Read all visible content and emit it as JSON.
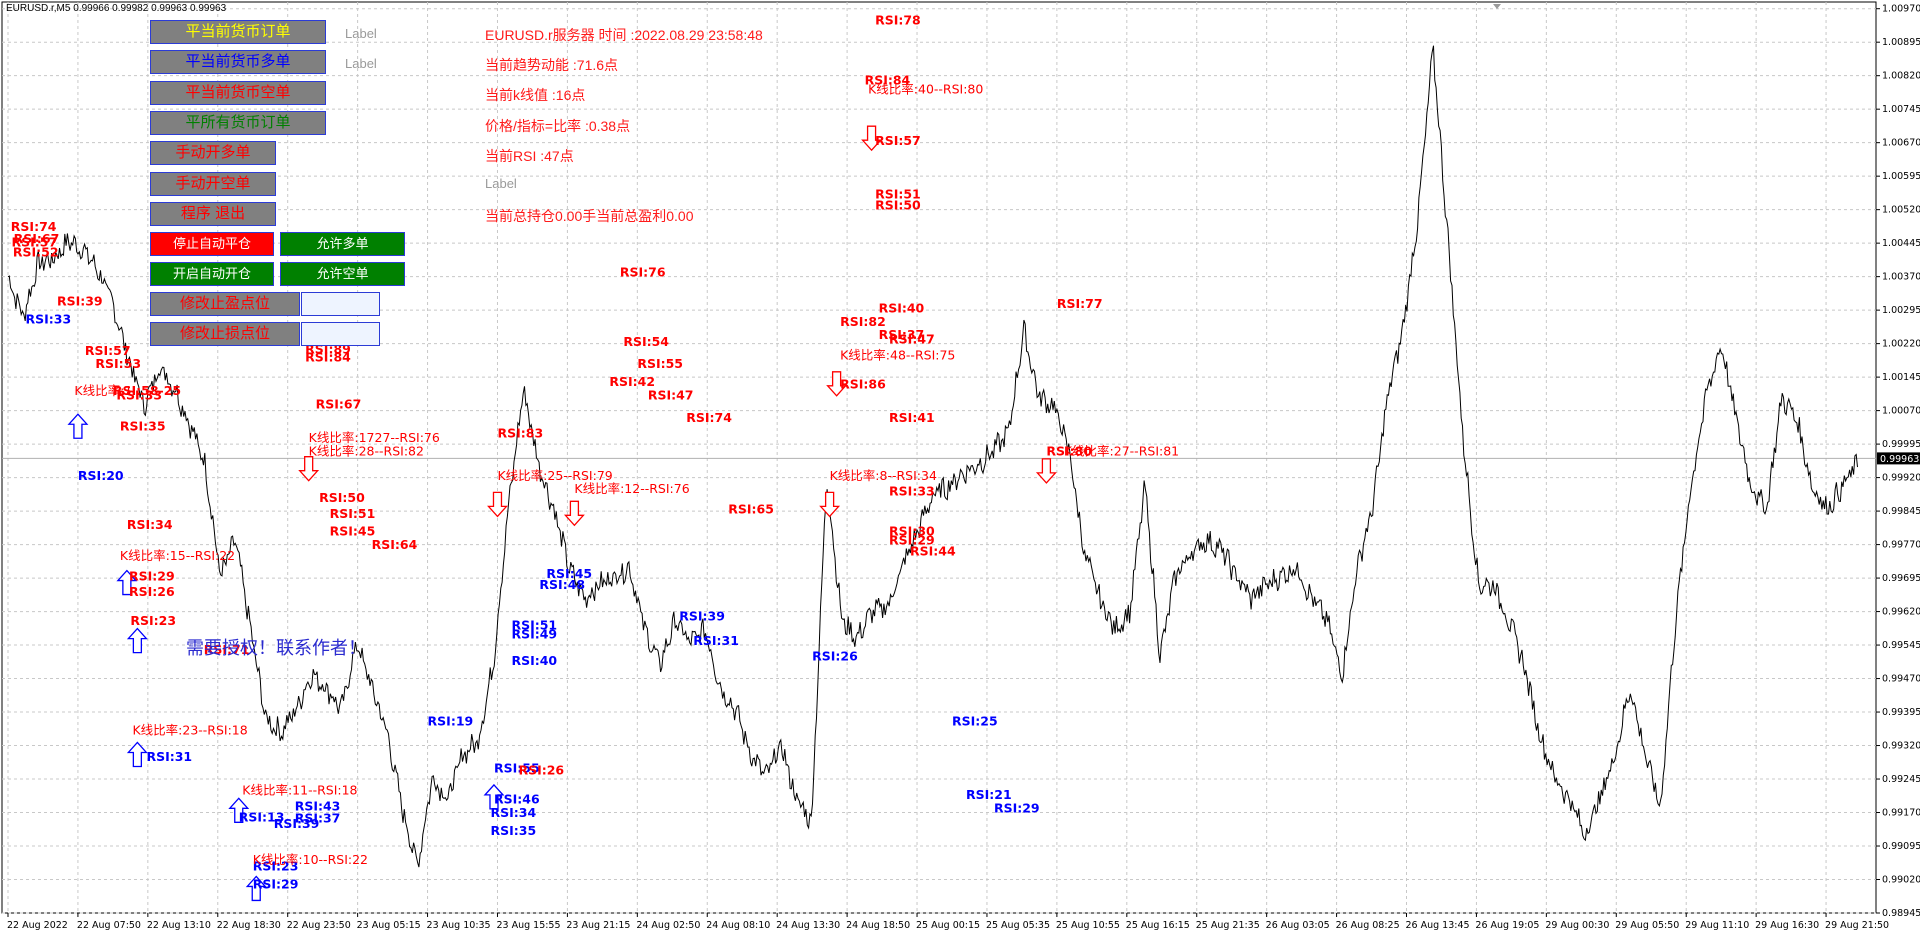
{
  "window": {
    "symbol_header": "EURUSD.r,M5  0.99966 0.99982 0.99963 0.99963"
  },
  "panel": {
    "buttons_left": [
      {
        "label": "平当前货币订单",
        "name": "close-current-orders-button",
        "bg": "#808080",
        "color": "#ffff00"
      },
      {
        "label": "平当前货币多单",
        "name": "close-current-long-button",
        "bg": "#808080",
        "color": "#0000ff"
      },
      {
        "label": "平当前货币空单",
        "name": "close-current-short-button",
        "bg": "#808080",
        "color": "#ff0000"
      },
      {
        "label": "平所有货币订单",
        "name": "close-all-orders-button",
        "bg": "#808080",
        "color": "#008000"
      },
      {
        "label": "手动开多单",
        "name": "manual-open-long-button",
        "bg": "#808080",
        "color": "#ff0000"
      },
      {
        "label": "手动开空单",
        "name": "manual-open-short-button",
        "bg": "#808080",
        "color": "#ff0000"
      },
      {
        "label": "程序 退出",
        "name": "exit-program-button",
        "bg": "#808080",
        "color": "#ff0000"
      }
    ],
    "side_labels": [
      "Label",
      "Label"
    ],
    "toggle_buttons": [
      {
        "label": "停止自动平仓",
        "name": "stop-auto-close-button",
        "bg": "#ff0000",
        "color": "#ffffff"
      },
      {
        "label": "允许多单",
        "name": "allow-long-button",
        "bg": "#008000",
        "color": "#ffffff"
      },
      {
        "label": "开启自动开仓",
        "name": "start-auto-open-button",
        "bg": "#008000",
        "color": "#ffffff"
      },
      {
        "label": "允许空单",
        "name": "allow-short-button",
        "bg": "#008000",
        "color": "#ffffff"
      }
    ],
    "edit_rows": [
      {
        "label": "修改止盈点位",
        "name": "modify-take-profit-button",
        "input_value": ""
      },
      {
        "label": "修改止损点位",
        "name": "modify-stop-loss-button",
        "input_value": ""
      }
    ],
    "info_lines": [
      "EURUSD.r服务器  时间 :2022.08.29 23:58:48",
      "当前趋势动能 :71.6点",
      "当前k线值 :16点",
      "价格/指标=比率 :0.38点",
      "当前RSI :47点",
      "Label",
      "当前总持仓0.00手当前总盈利0.00"
    ],
    "watermark": "需要授权！联系作者！"
  },
  "colors": {
    "price_line": "#000000",
    "grid": "#c8c8c8",
    "rsi_high": "#ff0000",
    "rsi_low": "#0000ff",
    "current_price_bg": "#000000"
  },
  "chart_data": {
    "type": "line",
    "symbol": "EURUSD.r",
    "timeframe": "M5",
    "ylim": [
      0.98945,
      1.00985
    ],
    "y_ticks": [
      "1.00970",
      "1.00895",
      "1.00820",
      "1.00745",
      "1.00670",
      "1.00595",
      "1.00520",
      "1.00445",
      "1.00370",
      "1.00295",
      "1.00220",
      "1.00145",
      "1.00070",
      "0.99995",
      "0.99920",
      "0.99845",
      "0.99770",
      "0.99695",
      "0.99620",
      "0.99545",
      "0.99470",
      "0.99395",
      "0.99320",
      "0.99245",
      "0.99170",
      "0.99095",
      "0.99020",
      "0.98945"
    ],
    "x_ticks": [
      "22 Aug 2022",
      "22 Aug 07:50",
      "22 Aug 13:10",
      "22 Aug 18:30",
      "22 Aug 23:50",
      "23 Aug 05:15",
      "23 Aug 10:35",
      "23 Aug 15:55",
      "23 Aug 21:15",
      "24 Aug 02:50",
      "24 Aug 08:10",
      "24 Aug 13:30",
      "24 Aug 18:50",
      "25 Aug 00:15",
      "25 Aug 05:35",
      "25 Aug 10:55",
      "25 Aug 16:15",
      "25 Aug 21:35",
      "26 Aug 03:05",
      "26 Aug 08:25",
      "26 Aug 13:45",
      "26 Aug 19:05",
      "29 Aug 00:30",
      "29 Aug 05:50",
      "29 Aug 11:10",
      "29 Aug 16:30",
      "29 Aug 21:50"
    ],
    "current_price": "0.99963",
    "series": [
      {
        "values": [
          1.0037,
          1.0028,
          1.004,
          1.0041,
          1.0045,
          1.0043,
          1.0038,
          1.003,
          1.0018,
          1.0008,
          1.0017,
          1.0012,
          1.0004,
          0.9995,
          0.997,
          0.9978,
          0.9958,
          0.9938,
          0.9935,
          0.994,
          0.9948,
          0.9945,
          0.994,
          0.9955,
          0.9945,
          0.9935,
          0.9918,
          0.9905,
          0.9925,
          0.992,
          0.993,
          0.9933,
          0.995,
          0.9985,
          1.0012,
          0.9995,
          0.9985,
          0.9972,
          0.9965,
          0.9968,
          0.997,
          0.9972,
          0.9958,
          0.995,
          0.996,
          0.9955,
          0.9958,
          0.9945,
          0.994,
          0.993,
          0.9925,
          0.9932,
          0.992,
          0.9915,
          0.9992,
          0.996,
          0.9956,
          0.9962,
          0.9963,
          0.9972,
          0.998,
          0.9988,
          0.999,
          0.9993,
          0.9995,
          0.9998,
          1.0002,
          1.0025,
          1.001,
          1.0008,
          0.9998,
          0.9975,
          0.9965,
          0.9958,
          0.9962,
          0.999,
          0.9952,
          0.997,
          0.9975,
          0.9978,
          0.9976,
          0.997,
          0.9965,
          0.9968,
          0.997,
          0.9972,
          0.9965,
          0.996,
          0.9948,
          0.9972,
          0.9985,
          1.001,
          1.0025,
          1.005,
          1.0088,
          1.0045,
          1.0,
          0.9968,
          0.9968,
          0.996,
          0.995,
          0.9935,
          0.9925,
          0.992,
          0.9912,
          0.992,
          0.993,
          0.9945,
          0.993,
          0.9918,
          0.996,
          0.999,
          1.001,
          1.0022,
          1.0005,
          0.999,
          0.9985,
          1.001,
          1.0005,
          0.999,
          0.9985,
          0.999,
          0.9995
        ]
      }
    ],
    "annotations": [
      {
        "text": "RSI:74",
        "x": 0.04,
        "y": 1.00472,
        "kind": "high"
      },
      {
        "text": "RSI:67",
        "x": 0.08,
        "y": 1.00445,
        "kind": "high"
      },
      {
        "text": "RSI:57",
        "x": 0.05,
        "y": 1.00438,
        "kind": "high"
      },
      {
        "text": "RSI:52",
        "x": 0.07,
        "y": 1.00415,
        "kind": "high"
      },
      {
        "text": "RSI:39",
        "x": 0.7,
        "y": 1.00305,
        "kind": "high"
      },
      {
        "text": "RSI:33",
        "x": 0.25,
        "y": 1.00265,
        "kind": "low"
      },
      {
        "text": "RSI:57",
        "x": 1.1,
        "y": 1.00195,
        "kind": "high"
      },
      {
        "text": "RSI:53",
        "x": 1.25,
        "y": 1.00165,
        "kind": "high"
      },
      {
        "text": "RSI:58-25",
        "x": 1.5,
        "y": 1.00105,
        "kind": "high"
      },
      {
        "text": "K线比率:1",
        "x": 0.95,
        "y": 1.00105,
        "kind": "high"
      },
      {
        "text": "RSI:33",
        "x": 1.55,
        "y": 1.00095,
        "kind": "high"
      },
      {
        "text": "RSI:35",
        "x": 1.6,
        "y": 1.00025,
        "kind": "high"
      },
      {
        "text": "RSI:20",
        "x": 1.0,
        "y": 0.99915,
        "kind": "low"
      },
      {
        "text": "RSI:34",
        "x": 1.7,
        "y": 0.99805,
        "kind": "high"
      },
      {
        "text": "K线比率:15--RSI:22",
        "x": 1.6,
        "y": 0.99735,
        "kind": "high"
      },
      {
        "text": "RSI:29",
        "x": 1.73,
        "y": 0.9969,
        "kind": "high"
      },
      {
        "text": "RSI:26",
        "x": 1.73,
        "y": 0.99655,
        "kind": "high"
      },
      {
        "text": "RSI:23",
        "x": 1.75,
        "y": 0.9959,
        "kind": "high"
      },
      {
        "text": "RSI:71",
        "x": 2.8,
        "y": 0.99525,
        "kind": "high"
      },
      {
        "text": "K线比率:23--RSI:18",
        "x": 1.78,
        "y": 0.99345,
        "kind": "high"
      },
      {
        "text": "RSI:31",
        "x": 1.98,
        "y": 0.99285,
        "kind": "low"
      },
      {
        "text": "RSI:13",
        "x": 3.3,
        "y": 0.9915,
        "kind": "low"
      },
      {
        "text": "K线比率:11--RSI:18",
        "x": 3.35,
        "y": 0.9921,
        "kind": "high"
      },
      {
        "text": "RSI:23",
        "x": 3.5,
        "y": 0.9904,
        "kind": "low"
      },
      {
        "text": "RSI:29",
        "x": 3.5,
        "y": 0.99,
        "kind": "low"
      },
      {
        "text": "K线比率:10--RSI:22",
        "x": 3.5,
        "y": 0.99055,
        "kind": "high"
      },
      {
        "text": "RSI:43",
        "x": 4.1,
        "y": 0.99175,
        "kind": "low"
      },
      {
        "text": "RSI:37",
        "x": 4.1,
        "y": 0.99148,
        "kind": "low"
      },
      {
        "text": "RSI:39",
        "x": 3.8,
        "y": 0.99135,
        "kind": "low"
      },
      {
        "text": "RSI:89",
        "x": 4.25,
        "y": 1.00198,
        "kind": "high"
      },
      {
        "text": "RSI:84",
        "x": 4.25,
        "y": 1.0018,
        "kind": "high"
      },
      {
        "text": "RSI:67",
        "x": 4.4,
        "y": 1.00075,
        "kind": "high"
      },
      {
        "text": "K线比率:1727--RSI:76",
        "x": 4.3,
        "y": 1.0,
        "kind": "high"
      },
      {
        "text": "K线比率:28--RSI:82",
        "x": 4.3,
        "y": 0.9997,
        "kind": "high"
      },
      {
        "text": "RSI:50",
        "x": 4.45,
        "y": 0.99865,
        "kind": "high"
      },
      {
        "text": "RSI:51",
        "x": 4.6,
        "y": 0.9983,
        "kind": "high"
      },
      {
        "text": "RSI:45",
        "x": 4.6,
        "y": 0.9979,
        "kind": "high"
      },
      {
        "text": "RSI:64",
        "x": 5.2,
        "y": 0.9976,
        "kind": "high"
      },
      {
        "text": "RSI:19",
        "x": 6.0,
        "y": 0.99365,
        "kind": "low"
      },
      {
        "text": "RSI:83",
        "x": 7.0,
        "y": 1.0001,
        "kind": "high"
      },
      {
        "text": "K线比率:25--RSI:79",
        "x": 7.0,
        "y": 0.99915,
        "kind": "high"
      },
      {
        "text": "RSI:55",
        "x": 6.95,
        "y": 0.9926,
        "kind": "low"
      },
      {
        "text": "RSI:26",
        "x": 7.3,
        "y": 0.99255,
        "kind": "high"
      },
      {
        "text": "RSI:46",
        "x": 6.95,
        "y": 0.9919,
        "kind": "low"
      },
      {
        "text": "RSI:34",
        "x": 6.9,
        "y": 0.9916,
        "kind": "low"
      },
      {
        "text": "RSI:35",
        "x": 6.9,
        "y": 0.9912,
        "kind": "low"
      },
      {
        "text": "RSI:51",
        "x": 7.2,
        "y": 0.9958,
        "kind": "low"
      },
      {
        "text": "RSI:49",
        "x": 7.2,
        "y": 0.9956,
        "kind": "low"
      },
      {
        "text": "RSI:40",
        "x": 7.2,
        "y": 0.995,
        "kind": "low"
      },
      {
        "text": "RSI:45",
        "x": 7.7,
        "y": 0.99695,
        "kind": "low"
      },
      {
        "text": "RSI:48",
        "x": 7.6,
        "y": 0.9967,
        "kind": "low"
      },
      {
        "text": "K线比率:12--RSI:76",
        "x": 8.1,
        "y": 0.99885,
        "kind": "high"
      },
      {
        "text": "RSI:76",
        "x": 8.75,
        "y": 1.0037,
        "kind": "high"
      },
      {
        "text": "RSI:54",
        "x": 8.8,
        "y": 1.00215,
        "kind": "high"
      },
      {
        "text": "RSI:55",
        "x": 9.0,
        "y": 1.00165,
        "kind": "high"
      },
      {
        "text": "RSI:42",
        "x": 8.6,
        "y": 1.00125,
        "kind": "high"
      },
      {
        "text": "RSI:47",
        "x": 9.15,
        "y": 1.00095,
        "kind": "high"
      },
      {
        "text": "RSI:74",
        "x": 9.7,
        "y": 1.00045,
        "kind": "high"
      },
      {
        "text": "RSI:65",
        "x": 10.3,
        "y": 0.9984,
        "kind": "high"
      },
      {
        "text": "RSI:39",
        "x": 9.6,
        "y": 0.996,
        "kind": "low"
      },
      {
        "text": "RSI:31",
        "x": 9.8,
        "y": 0.99545,
        "kind": "low"
      },
      {
        "text": "RSI:26",
        "x": 11.5,
        "y": 0.9951,
        "kind": "low"
      },
      {
        "text": "RSI:78",
        "x": 12.4,
        "y": 1.00935,
        "kind": "high"
      },
      {
        "text": "RSI:84",
        "x": 12.25,
        "y": 1.008,
        "kind": "high"
      },
      {
        "text": "K线比率:40--RSI:80",
        "x": 12.3,
        "y": 1.0078,
        "kind": "high"
      },
      {
        "text": "RSI:57",
        "x": 12.4,
        "y": 1.00665,
        "kind": "high"
      },
      {
        "text": "RSI:51",
        "x": 12.4,
        "y": 1.00545,
        "kind": "high"
      },
      {
        "text": "RSI:50",
        "x": 12.4,
        "y": 1.0052,
        "kind": "high"
      },
      {
        "text": "RSI:40",
        "x": 12.45,
        "y": 1.0029,
        "kind": "high"
      },
      {
        "text": "RSI:82",
        "x": 11.9,
        "y": 1.0026,
        "kind": "high"
      },
      {
        "text": "RSI:37",
        "x": 12.45,
        "y": 1.0023,
        "kind": "high"
      },
      {
        "text": "RSI:47",
        "x": 12.6,
        "y": 1.0022,
        "kind": "high"
      },
      {
        "text": "K线比率:48--RSI:75",
        "x": 11.9,
        "y": 1.00185,
        "kind": "high"
      },
      {
        "text": "RSI:86",
        "x": 11.9,
        "y": 1.0012,
        "kind": "high"
      },
      {
        "text": "RSI:41",
        "x": 12.6,
        "y": 1.00045,
        "kind": "high"
      },
      {
        "text": "K线比率:8--RSI:34",
        "x": 11.75,
        "y": 0.99915,
        "kind": "high"
      },
      {
        "text": "RSI:33",
        "x": 12.6,
        "y": 0.9988,
        "kind": "high"
      },
      {
        "text": "RSI:30",
        "x": 12.6,
        "y": 0.9979,
        "kind": "high"
      },
      {
        "text": "RSI:29",
        "x": 12.6,
        "y": 0.9977,
        "kind": "high"
      },
      {
        "text": "RSI:44",
        "x": 12.9,
        "y": 0.99745,
        "kind": "high"
      },
      {
        "text": "RSI:25",
        "x": 13.5,
        "y": 0.99365,
        "kind": "low"
      },
      {
        "text": "RSI:21",
        "x": 13.7,
        "y": 0.992,
        "kind": "low"
      },
      {
        "text": "RSI:29",
        "x": 14.1,
        "y": 0.9917,
        "kind": "low"
      },
      {
        "text": "RSI:77",
        "x": 15.0,
        "y": 1.003,
        "kind": "high"
      },
      {
        "text": "RSI:80",
        "x": 14.85,
        "y": 0.9997,
        "kind": "high"
      },
      {
        "text": "K线比率:27--RSI:81",
        "x": 15.1,
        "y": 0.9997,
        "kind": "high"
      }
    ],
    "arrows": [
      {
        "x": 1.0,
        "y": 1.00035,
        "dir": "up"
      },
      {
        "x": 1.7,
        "y": 0.99685,
        "dir": "up"
      },
      {
        "x": 1.85,
        "y": 0.99555,
        "dir": "up"
      },
      {
        "x": 1.85,
        "y": 0.993,
        "dir": "up"
      },
      {
        "x": 3.3,
        "y": 0.99175,
        "dir": "up"
      },
      {
        "x": 3.55,
        "y": 0.99,
        "dir": "up"
      },
      {
        "x": 4.3,
        "y": 0.9994,
        "dir": "down"
      },
      {
        "x": 7.0,
        "y": 0.9986,
        "dir": "down"
      },
      {
        "x": 8.1,
        "y": 0.9984,
        "dir": "down"
      },
      {
        "x": 6.95,
        "y": 0.99205,
        "dir": "up"
      },
      {
        "x": 11.75,
        "y": 0.9986,
        "dir": "down"
      },
      {
        "x": 11.85,
        "y": 1.0013,
        "dir": "down"
      },
      {
        "x": 12.35,
        "y": 1.0068,
        "dir": "down"
      },
      {
        "x": 14.85,
        "y": 0.99935,
        "dir": "down"
      }
    ]
  }
}
